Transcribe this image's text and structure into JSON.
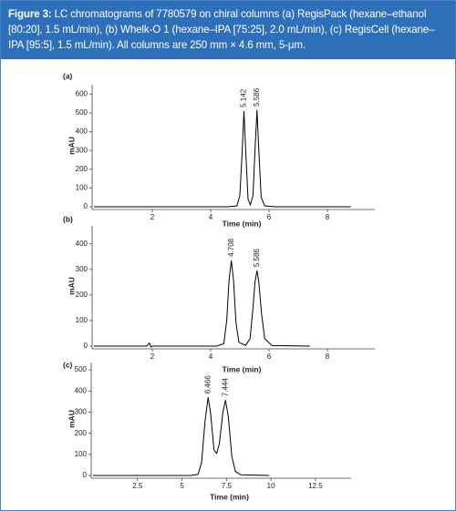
{
  "caption": {
    "label": "Figure 3:",
    "text": "LC chromatograms of 7780579 on chiral columns (a) RegisPack (hexane–ethanol [80:20], 1.5 mL/min), (b) Whelk-O 1 (hexane–IPA [75:25], 2.0 mL/min), (c) RegisCell (hexane–IPA [95:5], 1.5 mL/min). All columns are 250 mm × 4.6 mm, 5-µm."
  },
  "chart_data": [
    {
      "type": "line",
      "panel": "(a)",
      "xlabel": "Time (min)",
      "ylabel": "mAU",
      "color": "#000000",
      "xlim": [
        0,
        9.5
      ],
      "ylim": [
        0,
        650
      ],
      "xticks": [
        2,
        4,
        6,
        8
      ],
      "yticks": [
        0,
        100,
        200,
        300,
        400,
        500,
        600
      ],
      "x": [
        0,
        4.6,
        4.9,
        5.0,
        5.08,
        5.142,
        5.2,
        5.28,
        5.36,
        5.45,
        5.52,
        5.586,
        5.65,
        5.73,
        5.85,
        6.2,
        8.8
      ],
      "values": [
        0,
        0,
        5,
        60,
        300,
        510,
        300,
        40,
        10,
        60,
        300,
        515,
        300,
        50,
        5,
        0,
        0
      ],
      "peaks": [
        5.142,
        5.586
      ]
    },
    {
      "type": "line",
      "panel": "(b)",
      "xlabel": "Time (min)",
      "ylabel": "mAU",
      "color": "#000000",
      "xlim": [
        0,
        9.5
      ],
      "ylim": [
        0,
        470
      ],
      "xticks": [
        2,
        4,
        6,
        8
      ],
      "yticks": [
        0,
        100,
        200,
        300,
        400
      ],
      "x": [
        0,
        1.8,
        1.85,
        1.9,
        1.95,
        2.0,
        4.2,
        4.45,
        4.55,
        4.63,
        4.708,
        4.78,
        4.87,
        4.97,
        5.2,
        5.35,
        5.45,
        5.52,
        5.586,
        5.65,
        5.74,
        5.85,
        6.1,
        7.4
      ],
      "values": [
        0,
        0,
        6,
        12,
        -3,
        0,
        0,
        10,
        100,
        260,
        335,
        260,
        90,
        15,
        3,
        30,
        150,
        250,
        295,
        250,
        130,
        30,
        2,
        0
      ],
      "peaks": [
        4.708,
        5.586
      ]
    },
    {
      "type": "line",
      "panel": "(c)",
      "xlabel": "Time (min)",
      "ylabel": "mAU",
      "color": "#000000",
      "xlim": [
        0,
        14.3
      ],
      "ylim": [
        0,
        535
      ],
      "xticks": [
        2.5,
        5,
        7.5,
        10,
        12.5
      ],
      "yticks": [
        0,
        100,
        200,
        300,
        400,
        500
      ],
      "x": [
        0,
        5.5,
        5.9,
        6.1,
        6.3,
        6.466,
        6.6,
        6.8,
        6.95,
        7.1,
        7.3,
        7.444,
        7.6,
        7.8,
        8.0,
        8.3,
        9.9
      ],
      "values": [
        0,
        0,
        5,
        60,
        260,
        370,
        300,
        120,
        105,
        150,
        300,
        357,
        280,
        90,
        20,
        3,
        0
      ],
      "peaks": [
        6.466,
        7.444
      ]
    }
  ]
}
